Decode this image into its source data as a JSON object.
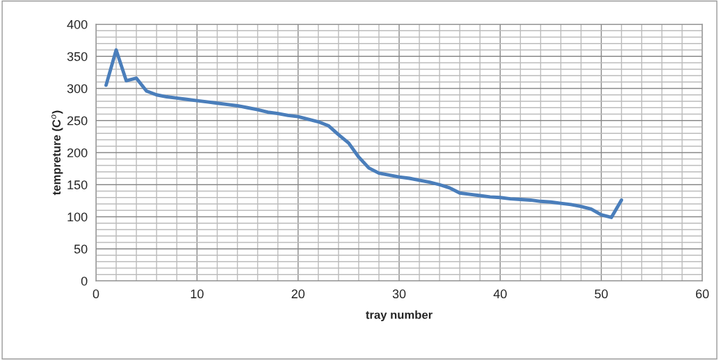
{
  "chart_data": {
    "type": "line",
    "xlabel": "tray number",
    "ylabel": "tempreture (C$^{o}$)",
    "x": [
      1,
      2,
      3,
      4,
      5,
      6,
      7,
      8,
      9,
      10,
      11,
      12,
      13,
      14,
      15,
      16,
      17,
      18,
      19,
      20,
      21,
      22,
      23,
      24,
      25,
      26,
      27,
      28,
      29,
      30,
      31,
      32,
      33,
      34,
      35,
      36,
      37,
      38,
      39,
      40,
      41,
      42,
      43,
      44,
      45,
      46,
      47,
      48,
      49,
      50,
      51,
      52
    ],
    "series": [
      {
        "color": "#4a7ebb",
        "values": [
          305,
          360,
          312,
          316,
          296,
          290,
          287,
          285,
          283,
          281,
          279,
          277,
          275,
          273,
          270,
          267,
          263,
          261,
          258,
          256,
          252,
          248,
          242,
          228,
          215,
          193,
          176,
          168,
          165,
          162,
          160,
          157,
          154,
          150,
          145,
          137,
          135,
          133,
          131,
          130,
          128,
          127,
          126,
          124,
          123,
          121,
          119,
          116,
          112,
          103,
          99,
          126
        ]
      }
    ],
    "xlim": [
      0,
      60
    ],
    "xticks": [
      0,
      10,
      20,
      30,
      40,
      50,
      60
    ],
    "ylim": [
      0,
      400
    ],
    "yticks": [
      0,
      50,
      100,
      150,
      200,
      250,
      300,
      350,
      400
    ],
    "grid": true,
    "legend": false,
    "marker": "none",
    "line_style": "solid"
  }
}
